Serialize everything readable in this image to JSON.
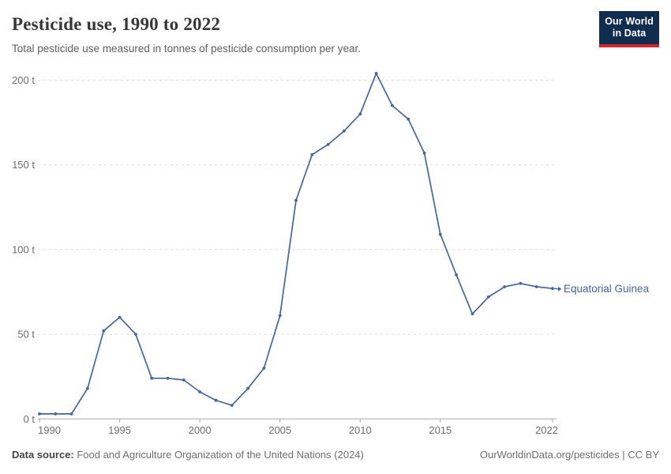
{
  "header": {
    "title": "Pesticide use, 1990 to 2022",
    "subtitle": "Total pesticide use measured in tonnes of pesticide consumption per year.",
    "logo": {
      "line1": "Our World",
      "line2": "in Data"
    }
  },
  "chart_data": {
    "type": "line",
    "title": "Pesticide use, 1990 to 2022",
    "xlabel": "",
    "ylabel": "",
    "unit": "tonnes",
    "x": [
      1990,
      1991,
      1992,
      1993,
      1994,
      1995,
      1996,
      1997,
      1998,
      1999,
      2000,
      2001,
      2002,
      2003,
      2004,
      2005,
      2006,
      2007,
      2008,
      2009,
      2010,
      2011,
      2012,
      2013,
      2014,
      2015,
      2016,
      2017,
      2018,
      2019,
      2020,
      2021,
      2022
    ],
    "series": [
      {
        "name": "Equatorial Guinea",
        "color": "#4665a0",
        "values": [
          3,
          3,
          3,
          18,
          52,
          60,
          50,
          24,
          24,
          23,
          16,
          11,
          8,
          18,
          30,
          61,
          129,
          156,
          162,
          170,
          180,
          204,
          185,
          177,
          157,
          109,
          85,
          62,
          72,
          78,
          80,
          78,
          77
        ]
      }
    ],
    "xlim": [
      1990,
      2022
    ],
    "ylim": [
      0,
      210
    ],
    "y_ticks": [
      0,
      50,
      100,
      150,
      200
    ],
    "y_tick_suffix": " t",
    "x_ticks": [
      1990,
      1995,
      2000,
      2005,
      2010,
      2015,
      2022
    ],
    "grid": "horizontal-dashed",
    "legend_position": "end-of-line-label",
    "colors": {
      "line": "#4665a0",
      "gridline": "#dcdcdc",
      "axis": "#a9a9a9",
      "tick_label": "#6e6e6e"
    }
  },
  "footer": {
    "datasource_label": "Data source:",
    "datasource_text": " Food and Agriculture Organization of the United Nations (2024)",
    "rights": "OurWorldinData.org/pesticides | CC BY"
  }
}
